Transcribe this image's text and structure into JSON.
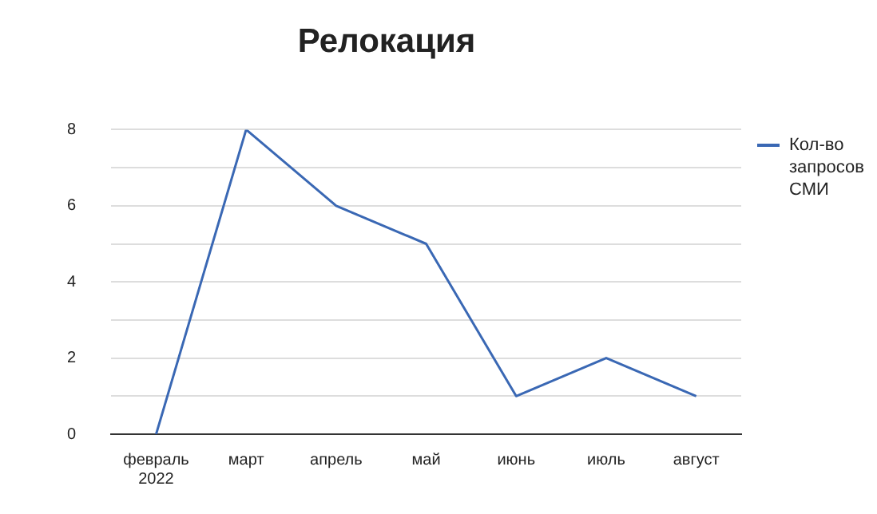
{
  "chart_data": {
    "type": "line",
    "title": "Релокация",
    "categories": [
      "февраль\n2022",
      "март",
      "апрель",
      "май",
      "июнь",
      "июль",
      "август"
    ],
    "series": [
      {
        "name": "Кол-во запросов СМИ",
        "color": "#3a68b4",
        "values": [
          0,
          8,
          6,
          5,
          1,
          2,
          1
        ]
      }
    ],
    "ylim": [
      0,
      8
    ],
    "yticks": [
      0,
      {
        "value": 1,
        "label": null
      },
      2,
      {
        "value": 3,
        "label": null
      },
      4,
      {
        "value": 5,
        "label": null
      },
      6,
      {
        "value": 7,
        "label": null
      },
      8
    ],
    "grid": "y",
    "legend": "right",
    "marker": "none",
    "line_style": "solid"
  }
}
